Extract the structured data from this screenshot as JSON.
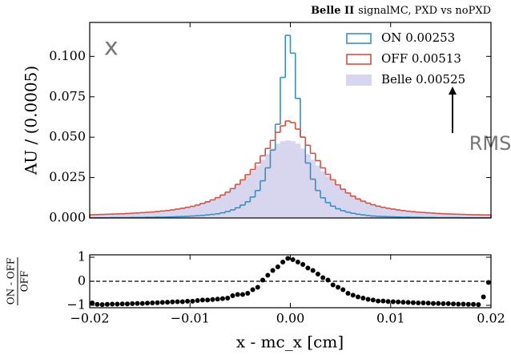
{
  "chart_data": [
    {
      "type": "histogram",
      "experiment": "Belle II",
      "subtitle": "signalMC, PXD vs noPXD",
      "ylabel": "AU / (0.0005)",
      "annotations": [
        "x",
        "RMS"
      ],
      "legend": "upper right",
      "bins": [
        -0.02,
        -0.0195,
        -0.019,
        -0.0185,
        -0.018,
        -0.0175,
        -0.017,
        -0.0165,
        -0.016,
        -0.0155,
        -0.015,
        -0.0145,
        -0.014,
        -0.0135,
        -0.013,
        -0.0125,
        -0.012,
        -0.0115,
        -0.011,
        -0.0105,
        -0.01,
        -0.0095,
        -0.009,
        -0.0085,
        -0.008,
        -0.0075,
        -0.007,
        -0.0065,
        -0.006,
        -0.0055,
        -0.005,
        -0.0045,
        -0.004,
        -0.0035,
        -0.003,
        -0.0025,
        -0.002,
        -0.0015,
        -0.001,
        -0.0005,
        0,
        0.0005,
        0.001,
        0.0015,
        0.002,
        0.0025,
        0.003,
        0.0035,
        0.004,
        0.0045,
        0.005,
        0.0055,
        0.006,
        0.0065,
        0.007,
        0.0075,
        0.008,
        0.0085,
        0.009,
        0.0095,
        0.01,
        0.0105,
        0.011,
        0.0115,
        0.012,
        0.0125,
        0.013,
        0.0135,
        0.014,
        0.0145,
        0.015,
        0.0155,
        0.016,
        0.0165,
        0.017,
        0.0175,
        0.018,
        0.0185,
        0.019,
        0.0195,
        0.02
      ],
      "series": [
        {
          "name": "Belle 0.00525",
          "color": "#d8d5ef",
          "style": "filled",
          "values": [
            0.0018,
            0.0019,
            0.002,
            0.0021,
            0.0022,
            0.0023,
            0.0024,
            0.0026,
            0.0027,
            0.0029,
            0.0031,
            0.0033,
            0.0035,
            0.0038,
            0.0041,
            0.0044,
            0.0048,
            0.0053,
            0.0058,
            0.0064,
            0.007,
            0.0078,
            0.0088,
            0.0098,
            0.011,
            0.0124,
            0.014,
            0.0158,
            0.018,
            0.0205,
            0.023,
            0.026,
            0.029,
            0.0325,
            0.036,
            0.0395,
            0.043,
            0.046,
            0.0475,
            0.048,
            0.0475,
            0.046,
            0.043,
            0.0395,
            0.036,
            0.0325,
            0.029,
            0.0258,
            0.0228,
            0.02,
            0.0175,
            0.0153,
            0.0134,
            0.0117,
            0.0103,
            0.0091,
            0.0081,
            0.0072,
            0.0065,
            0.0059,
            0.0054,
            0.0049,
            0.0045,
            0.0041,
            0.0038,
            0.0035,
            0.0033,
            0.0031,
            0.0029,
            0.0027,
            0.0025,
            0.0024,
            0.0023,
            0.0022,
            0.0021,
            0.002,
            0.0019,
            0.0019,
            0.0018,
            0.0018
          ]
        },
        {
          "name": "ON 0.00253",
          "color": "#3a8fc0",
          "style": "step",
          "values": [
            0.0001,
            0.0001,
            0.0001,
            0.0001,
            0.0002,
            0.0002,
            0.0002,
            0.0002,
            0.0003,
            0.0003,
            0.0003,
            0.0004,
            0.0004,
            0.0005,
            0.0005,
            0.0006,
            0.0007,
            0.0008,
            0.0009,
            0.001,
            0.0012,
            0.0014,
            0.0016,
            0.0019,
            0.0022,
            0.0026,
            0.0032,
            0.004,
            0.005,
            0.0063,
            0.008,
            0.01,
            0.013,
            0.017,
            0.023,
            0.031,
            0.042,
            0.058,
            0.087,
            0.113,
            0.102,
            0.074,
            0.05,
            0.034,
            0.024,
            0.017,
            0.0125,
            0.0095,
            0.0073,
            0.0057,
            0.0045,
            0.0036,
            0.0029,
            0.0023,
            0.0019,
            0.0015,
            0.0012,
            0.001,
            0.0009,
            0.0008,
            0.0007,
            0.0006,
            0.0005,
            0.0005,
            0.0004,
            0.0004,
            0.0003,
            0.0003,
            0.0003,
            0.0002,
            0.0002,
            0.0002,
            0.0002,
            0.0002,
            0.0001,
            0.0001,
            0.0001,
            0.0001,
            0.0001,
            0.0001
          ]
        },
        {
          "name": "OFF 0.00513",
          "color": "#d9503f",
          "style": "step",
          "values": [
            0.002,
            0.0021,
            0.0022,
            0.0023,
            0.0024,
            0.0025,
            0.0026,
            0.0028,
            0.0029,
            0.0031,
            0.0033,
            0.0035,
            0.0037,
            0.004,
            0.0043,
            0.0046,
            0.005,
            0.0055,
            0.006,
            0.0066,
            0.0072,
            0.008,
            0.009,
            0.01,
            0.0112,
            0.0126,
            0.0142,
            0.016,
            0.0182,
            0.0208,
            0.0236,
            0.0268,
            0.03,
            0.034,
            0.0385,
            0.043,
            0.048,
            0.053,
            0.057,
            0.06,
            0.059,
            0.055,
            0.05,
            0.045,
            0.04,
            0.0355,
            0.031,
            0.027,
            0.0236,
            0.0205,
            0.0178,
            0.0155,
            0.0135,
            0.0118,
            0.0104,
            0.0092,
            0.0082,
            0.0073,
            0.0066,
            0.006,
            0.0055,
            0.005,
            0.0046,
            0.0042,
            0.0039,
            0.0036,
            0.0034,
            0.0032,
            0.003,
            0.0028,
            0.0026,
            0.0025,
            0.0024,
            0.0023,
            0.0022,
            0.0021,
            0.002,
            0.002,
            0.0019,
            0.0019
          ]
        }
      ],
      "xlim": [
        -0.02,
        0.02
      ],
      "xticks": [
        -0.02,
        -0.01,
        0,
        0.01,
        0.02
      ],
      "ylim": [
        0,
        0.121
      ],
      "yticks": [
        {
          "value": 0,
          "label": "0.000"
        },
        0.025,
        {
          "value": 0.05,
          "label": "0.050"
        },
        0.075,
        {
          "value": 0.1,
          "label": "0.100"
        }
      ]
    },
    {
      "type": "scatter",
      "xlabel": "x - mc_x [cm]",
      "ylabel_top": "ON - OFF",
      "ylabel_bottom": "OFF",
      "color": "#000000",
      "reference_line": 0,
      "x": [
        -0.01975,
        -0.01925,
        -0.01875,
        -0.01825,
        -0.01775,
        -0.01725,
        -0.01675,
        -0.01625,
        -0.01575,
        -0.01525,
        -0.01475,
        -0.01425,
        -0.01375,
        -0.01325,
        -0.01275,
        -0.01225,
        -0.01175,
        -0.01125,
        -0.01075,
        -0.01025,
        -0.00975,
        -0.00925,
        -0.00875,
        -0.00825,
        -0.00775,
        -0.00725,
        -0.00675,
        -0.00625,
        -0.00575,
        -0.00525,
        -0.00475,
        -0.00425,
        -0.00375,
        -0.00325,
        -0.00275,
        -0.00225,
        -0.00175,
        -0.00125,
        -0.00075,
        -0.00025,
        0.00025,
        0.00075,
        0.00125,
        0.00175,
        0.00225,
        0.00275,
        0.00325,
        0.00375,
        0.00425,
        0.00475,
        0.00525,
        0.00575,
        0.00625,
        0.00675,
        0.00725,
        0.00775,
        0.00825,
        0.00875,
        0.00925,
        0.00975,
        0.01025,
        0.01075,
        0.01125,
        0.01175,
        0.01225,
        0.01275,
        0.01325,
        0.01375,
        0.01425,
        0.01475,
        0.01525,
        0.01575,
        0.01625,
        0.01675,
        0.01725,
        0.01775,
        0.01825,
        0.01875,
        0.01925,
        0.01975
      ],
      "values": [
        -0.9,
        -0.96,
        -0.97,
        -0.96,
        -0.95,
        -0.95,
        -0.94,
        -0.94,
        -0.93,
        -0.92,
        -0.92,
        -0.91,
        -0.9,
        -0.89,
        -0.88,
        -0.87,
        -0.86,
        -0.85,
        -0.85,
        -0.83,
        -0.83,
        -0.8,
        -0.78,
        -0.78,
        -0.76,
        -0.74,
        -0.72,
        -0.7,
        -0.6,
        -0.55,
        -0.55,
        -0.5,
        -0.35,
        -0.25,
        0.05,
        0.25,
        0.45,
        0.6,
        0.8,
        0.95,
        0.9,
        0.8,
        0.7,
        0.55,
        0.45,
        0.3,
        0.15,
        0.05,
        -0.15,
        -0.25,
        -0.35,
        -0.5,
        -0.58,
        -0.65,
        -0.7,
        -0.75,
        -0.78,
        -0.82,
        -0.82,
        -0.84,
        -0.85,
        -0.86,
        -0.87,
        -0.88,
        -0.89,
        -0.9,
        -0.9,
        -0.91,
        -0.92,
        -0.92,
        -0.93,
        -0.93,
        -0.94,
        -0.95,
        -0.95,
        -0.96,
        -0.96,
        -0.97,
        -0.65,
        -0.05
      ],
      "xlim": [
        -0.02,
        0.02
      ],
      "xticks": [
        {
          "value": -0.02,
          "label": "−0.02"
        },
        {
          "value": -0.01,
          "label": "−0.01"
        },
        {
          "value": 0,
          "label": "0.00"
        },
        0.01,
        0.02
      ],
      "ylim": [
        -1.1,
        1.1
      ],
      "yticks": [
        1,
        0,
        {
          "value": -1,
          "label": "−1"
        }
      ]
    }
  ]
}
